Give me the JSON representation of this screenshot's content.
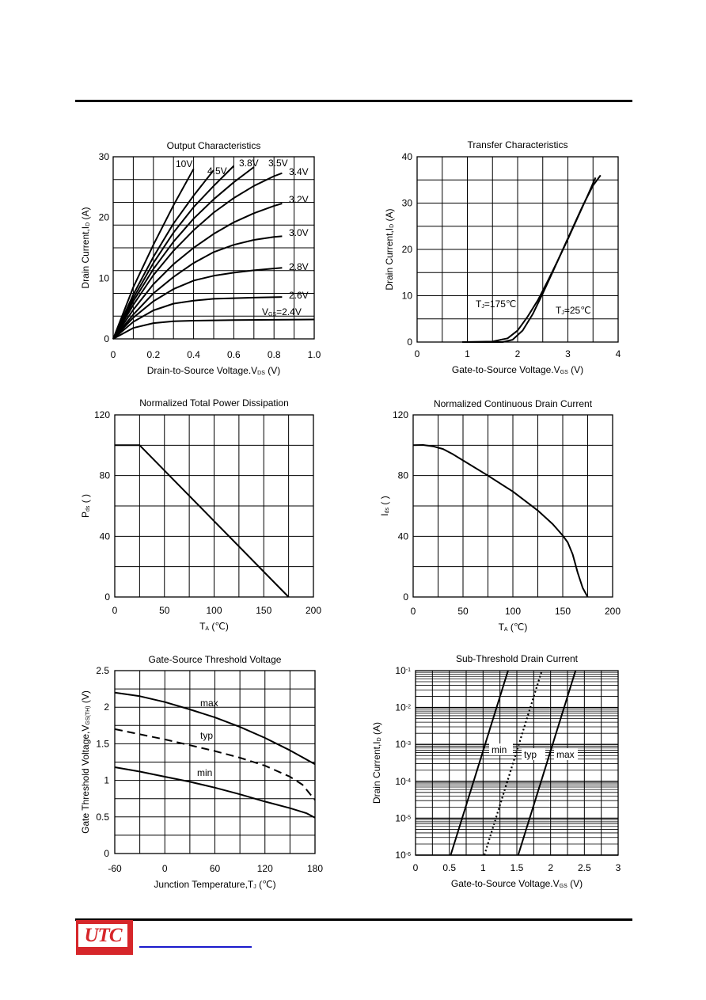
{
  "chart_data": [
    {
      "type": "line",
      "title": "Output Characteristics",
      "xlabel": "Drain-to-Source Voltage.V",
      "xlabel_sub": "DS",
      "xlabel_suffix": " (V)",
      "ylabel": "Drain Current,I",
      "ylabel_sub": "D",
      "ylabel_suffix": " (A)",
      "xlim": [
        0,
        1.0
      ],
      "ylim": [
        0,
        30
      ],
      "xticks": [
        0,
        0.2,
        0.4,
        0.6,
        0.8,
        1.0
      ],
      "xtick_labels": [
        "0",
        "0.2",
        "0.4",
        "0.6",
        "0.8",
        "1.0"
      ],
      "yticks": [
        0,
        10,
        20,
        30
      ],
      "ytick_labels": [
        "0",
        "10",
        "20",
        "30"
      ],
      "grid": true,
      "series": [
        {
          "name": "10V",
          "points": [
            [
              0,
              0
            ],
            [
              0.1,
              8.5
            ],
            [
              0.2,
              15.5
            ],
            [
              0.3,
              22
            ],
            [
              0.4,
              28
            ]
          ]
        },
        {
          "name": "4.5V",
          "points": [
            [
              0,
              0
            ],
            [
              0.1,
              7.3
            ],
            [
              0.2,
              13.5
            ],
            [
              0.3,
              19
            ],
            [
              0.4,
              23.6
            ],
            [
              0.5,
              27.8
            ]
          ]
        },
        {
          "name": "3.8V",
          "points": [
            [
              0,
              0
            ],
            [
              0.1,
              6.7
            ],
            [
              0.2,
              12.5
            ],
            [
              0.3,
              17.5
            ],
            [
              0.4,
              21.7
            ],
            [
              0.5,
              25.2
            ],
            [
              0.6,
              28.5
            ]
          ]
        },
        {
          "name": "3.5V",
          "points": [
            [
              0,
              0
            ],
            [
              0.1,
              6.2
            ],
            [
              0.2,
              11.5
            ],
            [
              0.3,
              16
            ],
            [
              0.4,
              19.8
            ],
            [
              0.5,
              23
            ],
            [
              0.6,
              25.8
            ],
            [
              0.7,
              28.3
            ]
          ]
        },
        {
          "name": "3.4V",
          "points": [
            [
              0,
              0
            ],
            [
              0.1,
              5.6
            ],
            [
              0.2,
              10.5
            ],
            [
              0.3,
              14.5
            ],
            [
              0.4,
              17.9
            ],
            [
              0.5,
              20.8
            ],
            [
              0.6,
              23.2
            ],
            [
              0.7,
              25.2
            ],
            [
              0.8,
              26.8
            ],
            [
              0.84,
              27.3
            ]
          ]
        },
        {
          "name": "3.2V",
          "points": [
            [
              0,
              0
            ],
            [
              0.1,
              4.8
            ],
            [
              0.2,
              9
            ],
            [
              0.3,
              12.3
            ],
            [
              0.4,
              15
            ],
            [
              0.5,
              17.3
            ],
            [
              0.6,
              19.2
            ],
            [
              0.7,
              20.7
            ],
            [
              0.8,
              21.9
            ],
            [
              0.84,
              22.3
            ]
          ]
        },
        {
          "name": "3.0V",
          "points": [
            [
              0,
              0
            ],
            [
              0.1,
              4
            ],
            [
              0.2,
              7.5
            ],
            [
              0.3,
              10.2
            ],
            [
              0.4,
              12.5
            ],
            [
              0.5,
              14.3
            ],
            [
              0.6,
              15.5
            ],
            [
              0.7,
              16.3
            ],
            [
              0.8,
              16.8
            ],
            [
              0.84,
              16.9
            ]
          ]
        },
        {
          "name": "2.8V",
          "points": [
            [
              0,
              0
            ],
            [
              0.1,
              3.5
            ],
            [
              0.2,
              6.2
            ],
            [
              0.3,
              8.2
            ],
            [
              0.4,
              9.6
            ],
            [
              0.5,
              10.4
            ],
            [
              0.6,
              10.9
            ],
            [
              0.7,
              11.3
            ],
            [
              0.8,
              11.6
            ],
            [
              0.84,
              11.7
            ]
          ]
        },
        {
          "name": "2.6V",
          "points": [
            [
              0,
              0
            ],
            [
              0.1,
              2.8
            ],
            [
              0.2,
              4.7
            ],
            [
              0.3,
              5.8
            ],
            [
              0.4,
              6.3
            ],
            [
              0.5,
              6.6
            ],
            [
              0.6,
              6.7
            ],
            [
              0.7,
              6.8
            ],
            [
              0.84,
              6.9
            ]
          ]
        },
        {
          "name": "2.4V",
          "points": [
            [
              0,
              0
            ],
            [
              0.1,
              1.8
            ],
            [
              0.2,
              2.6
            ],
            [
              0.3,
              2.9
            ],
            [
              0.4,
              3.0
            ],
            [
              0.6,
              3.1
            ],
            [
              0.8,
              3.15
            ],
            [
              1.0,
              3.2
            ]
          ]
        }
      ],
      "annotations": [
        "10V",
        "4.5V",
        "3.8V",
        "3.5V",
        "3.4V",
        "3.2V",
        "3.0V",
        "2.8V",
        "2.6V",
        "V",
        "GS",
        "=2.4V"
      ]
    },
    {
      "type": "line",
      "title": "Transfer Characteristics",
      "xlabel": "Gate-to-Source Voltage.V",
      "xlabel_sub": "GS",
      "xlabel_suffix": " (V)",
      "ylabel": "Drain Current,I",
      "ylabel_sub": "D",
      "ylabel_suffix": " (A)",
      "xlim": [
        0,
        4
      ],
      "ylim": [
        0,
        40
      ],
      "xticks": [
        0,
        1,
        2,
        3,
        4
      ],
      "xtick_labels": [
        "0",
        "1",
        "2",
        "3",
        "4"
      ],
      "yticks": [
        0,
        10,
        20,
        30,
        40
      ],
      "ytick_labels": [
        "0",
        "10",
        "20",
        "30",
        "40"
      ],
      "grid": true,
      "series": [
        {
          "name": "T_J=175℃",
          "points": [
            [
              0.9,
              0
            ],
            [
              1.5,
              0.1
            ],
            [
              1.8,
              0.8
            ],
            [
              2.0,
              2.5
            ],
            [
              2.2,
              5.5
            ],
            [
              2.4,
              9
            ],
            [
              2.6,
              13.2
            ],
            [
              2.8,
              17.6
            ],
            [
              3.0,
              22.2
            ],
            [
              3.2,
              27
            ],
            [
              3.4,
              31.8
            ],
            [
              3.55,
              35.5
            ]
          ]
        },
        {
          "name": "T_J=25℃",
          "points": [
            [
              0.9,
              0
            ],
            [
              1.7,
              0
            ],
            [
              1.9,
              0.5
            ],
            [
              2.1,
              2.5
            ],
            [
              2.3,
              6
            ],
            [
              2.5,
              10.5
            ],
            [
              2.7,
              15.2
            ],
            [
              2.9,
              20
            ],
            [
              3.1,
              24.8
            ],
            [
              3.3,
              29.5
            ],
            [
              3.5,
              33.8
            ],
            [
              3.65,
              36
            ]
          ]
        }
      ],
      "annotations": [
        "T",
        "J",
        "=175℃",
        "T",
        "J",
        "=25℃"
      ]
    },
    {
      "type": "line",
      "title": "Normalized Total Power Dissipation",
      "xlabel": "T",
      "xlabel_sub": "A",
      "xlabel_suffix": " (℃)",
      "ylabel": "P",
      "ylabel_sub": "ds",
      "ylabel_suffix": " (   )",
      "xlim": [
        0,
        200
      ],
      "ylim": [
        0,
        120
      ],
      "xticks": [
        0,
        50,
        100,
        150,
        200
      ],
      "xtick_labels": [
        "0",
        "50",
        "100",
        "150",
        "200"
      ],
      "yticks": [
        0,
        40,
        80,
        120
      ],
      "ytick_labels": [
        "0",
        "40",
        "80",
        "120"
      ],
      "grid": true,
      "series": [
        {
          "points": [
            [
              0,
              100
            ],
            [
              25,
              100
            ],
            [
              175,
              0
            ]
          ]
        }
      ]
    },
    {
      "type": "line",
      "title": "Normalized Continuous Drain Current",
      "xlabel": "T",
      "xlabel_sub": "A",
      "xlabel_suffix": " (℃)",
      "ylabel": "I",
      "ylabel_sub": "ds",
      "ylabel_suffix": " (   )",
      "xlim": [
        0,
        200
      ],
      "ylim": [
        0,
        120
      ],
      "xticks": [
        0,
        50,
        100,
        150,
        200
      ],
      "xtick_labels": [
        "0",
        "50",
        "100",
        "150",
        "200"
      ],
      "yticks": [
        0,
        40,
        80,
        120
      ],
      "ytick_labels": [
        "0",
        "40",
        "80",
        "120"
      ],
      "grid": true,
      "series": [
        {
          "points": [
            [
              0,
              100
            ],
            [
              10,
              100.2
            ],
            [
              20,
              99.3
            ],
            [
              30,
              97.5
            ],
            [
              40,
              94
            ],
            [
              50,
              90
            ],
            [
              75,
              80
            ],
            [
              100,
              69.5
            ],
            [
              125,
              57
            ],
            [
              140,
              48
            ],
            [
              150,
              40.5
            ],
            [
              155,
              36
            ],
            [
              160,
              28
            ],
            [
              165,
              16
            ],
            [
              170,
              6
            ],
            [
              175,
              0
            ]
          ]
        }
      ]
    },
    {
      "type": "line",
      "title": "Gate-Source Threshold Voltage",
      "xlabel": "Junction Temperature,T",
      "xlabel_sub": "J",
      "xlabel_suffix": " (℃)",
      "ylabel": "Gate Threshold Voltage,V",
      "ylabel_sub": "GS(TH)",
      "ylabel_suffix": " (V)",
      "xlim": [
        -60,
        180
      ],
      "ylim": [
        0,
        2.5
      ],
      "xticks": [
        -60,
        0,
        60,
        120,
        180
      ],
      "xtick_labels": [
        "-60",
        "0",
        "60",
        "120",
        "180"
      ],
      "yticks": [
        0,
        0.5,
        1,
        1.5,
        2,
        2.5
      ],
      "ytick_labels": [
        "0",
        "0.5",
        "1",
        "1.5",
        "2",
        "2.5"
      ],
      "grid": true,
      "series": [
        {
          "name": "max",
          "style": "solid",
          "points": [
            [
              -60,
              2.2
            ],
            [
              -30,
              2.15
            ],
            [
              0,
              2.07
            ],
            [
              30,
              1.97
            ],
            [
              60,
              1.86
            ],
            [
              90,
              1.73
            ],
            [
              120,
              1.58
            ],
            [
              150,
              1.41
            ],
            [
              180,
              1.22
            ]
          ]
        },
        {
          "name": "typ",
          "style": "dashed",
          "points": [
            [
              -60,
              1.7
            ],
            [
              -30,
              1.63
            ],
            [
              0,
              1.56
            ],
            [
              30,
              1.48
            ],
            [
              60,
              1.4
            ],
            [
              90,
              1.31
            ],
            [
              120,
              1.2
            ],
            [
              150,
              1.05
            ],
            [
              165,
              0.94
            ],
            [
              180,
              0.73
            ]
          ]
        },
        {
          "name": "min",
          "style": "solid",
          "points": [
            [
              -60,
              1.18
            ],
            [
              -30,
              1.12
            ],
            [
              0,
              1.05
            ],
            [
              30,
              0.98
            ],
            [
              60,
              0.9
            ],
            [
              90,
              0.81
            ],
            [
              120,
              0.71
            ],
            [
              150,
              0.62
            ],
            [
              170,
              0.55
            ],
            [
              180,
              0.49
            ]
          ]
        }
      ],
      "annotations": [
        "max",
        "typ",
        "min"
      ]
    },
    {
      "type": "line",
      "title": "Sub-Threshold Drain Current",
      "xlabel": "Gate-to-Source Voltage.V",
      "xlabel_sub": "GS",
      "xlabel_suffix": " (V)",
      "ylabel": "Drain Current,I",
      "ylabel_sub": "D",
      "ylabel_suffix": " (A)",
      "y_scale": "log",
      "xlim": [
        0,
        3
      ],
      "ylim": [
        1e-06,
        0.1
      ],
      "xticks": [
        0,
        0.5,
        1,
        1.5,
        2,
        2.5,
        3
      ],
      "xtick_labels": [
        "0",
        "0.5",
        "1",
        "1.5",
        "2",
        "2.5",
        "3"
      ],
      "ytick_labels": [
        "10",
        "10",
        "10",
        "10",
        "10",
        "10"
      ],
      "ytick_exponents": [
        "-1",
        "-2",
        "-3",
        "-4",
        "-5",
        "-6"
      ],
      "grid": true,
      "series": [
        {
          "name": "min",
          "style": "solid",
          "points": [
            [
              0.52,
              1e-06
            ],
            [
              1.37,
              0.1
            ]
          ]
        },
        {
          "name": "typ",
          "style": "dotted",
          "points": [
            [
              1.02,
              1e-06
            ],
            [
              1.87,
              0.1
            ]
          ]
        },
        {
          "name": "max",
          "style": "solid",
          "points": [
            [
              1.52,
              1e-06
            ],
            [
              2.37,
              0.1
            ]
          ]
        }
      ],
      "annotations": [
        "min",
        "typ",
        "max"
      ]
    }
  ],
  "logo": {
    "text": "UTC"
  },
  "colors": {
    "logo_red": "#d6262a",
    "link_blue": "#1a1acc",
    "line": "#000000"
  }
}
